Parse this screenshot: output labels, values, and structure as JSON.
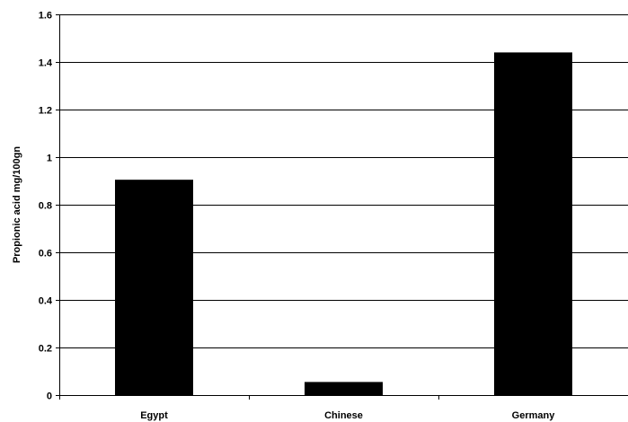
{
  "chart_data": {
    "type": "bar",
    "title": "",
    "xlabel": "",
    "ylabel": "Propionic acid mg/100gn",
    "categories": [
      "Egypt",
      "Chinese",
      "Germany"
    ],
    "values": [
      0.905,
      0.055,
      1.44
    ],
    "ylim": [
      0,
      1.6
    ],
    "yticks": [
      0,
      0.2,
      0.4,
      0.6,
      0.8,
      1,
      1.2,
      1.4,
      1.6
    ],
    "ytick_labels": [
      "0",
      "0.2",
      "0.4",
      "0.6",
      "0.8",
      "1",
      "1.2",
      "1.4",
      "1.6"
    ],
    "grid": true,
    "legend": "none",
    "bar_color": "#000000"
  }
}
